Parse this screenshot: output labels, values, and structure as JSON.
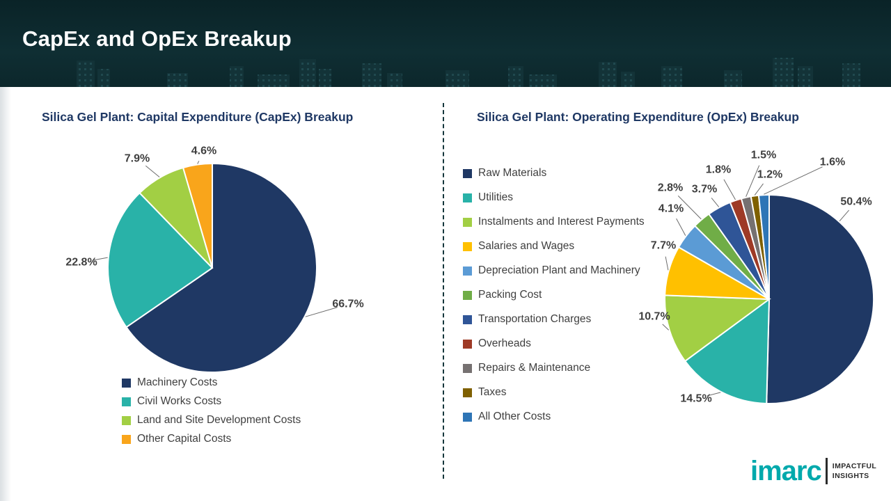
{
  "header": {
    "title": "CapEx and OpEx Breakup"
  },
  "chart_data": [
    {
      "type": "pie",
      "title": "Silica Gel Plant: Capital Expenditure (CapEx) Breakup",
      "categories": [
        "Machinery Costs",
        "Civil Works Costs",
        "Land and Site Development Costs",
        "Other Capital Costs"
      ],
      "values": [
        66.7,
        22.8,
        7.9,
        4.6
      ],
      "data_labels": [
        "66.7%",
        "22.8%",
        "7.9%",
        "4.6%"
      ],
      "unit": "%",
      "colors": [
        "#1f3864",
        "#29b2a8",
        "#a2cf44",
        "#f9a51b"
      ],
      "start_angle_deg": 0,
      "direction": "clockwise",
      "legend_position": "bottom-left"
    },
    {
      "type": "pie",
      "title": "Silica Gel Plant: Operating Expenditure (OpEx) Breakup",
      "categories": [
        "Raw Materials",
        "Utilities",
        "Instalments and Interest Payments",
        "Salaries and Wages",
        "Depreciation Plant and Machinery",
        "Packing Cost",
        "Transportation Charges",
        "Overheads",
        "Repairs & Maintenance",
        "Taxes",
        "All Other Costs"
      ],
      "values": [
        50.4,
        14.5,
        10.7,
        7.7,
        4.1,
        2.8,
        3.7,
        1.8,
        1.5,
        1.2,
        1.6
      ],
      "data_labels": [
        "50.4%",
        "14.5%",
        "10.7%",
        "7.7%",
        "4.1%",
        "2.8%",
        "3.7%",
        "1.8%",
        "1.5%",
        "1.2%",
        "1.6%"
      ],
      "unit": "%",
      "colors": [
        "#1f3864",
        "#29b2a8",
        "#a2cf44",
        "#ffc000",
        "#5b9bd5",
        "#70ad47",
        "#2f5597",
        "#9e3a26",
        "#767171",
        "#7f6000",
        "#2e75b6"
      ],
      "start_angle_deg": 0,
      "direction": "clockwise",
      "legend_position": "left"
    }
  ],
  "footer": {
    "brand": "imarc",
    "tagline": [
      "IMPACTFUL",
      "INSIGHTS"
    ]
  }
}
